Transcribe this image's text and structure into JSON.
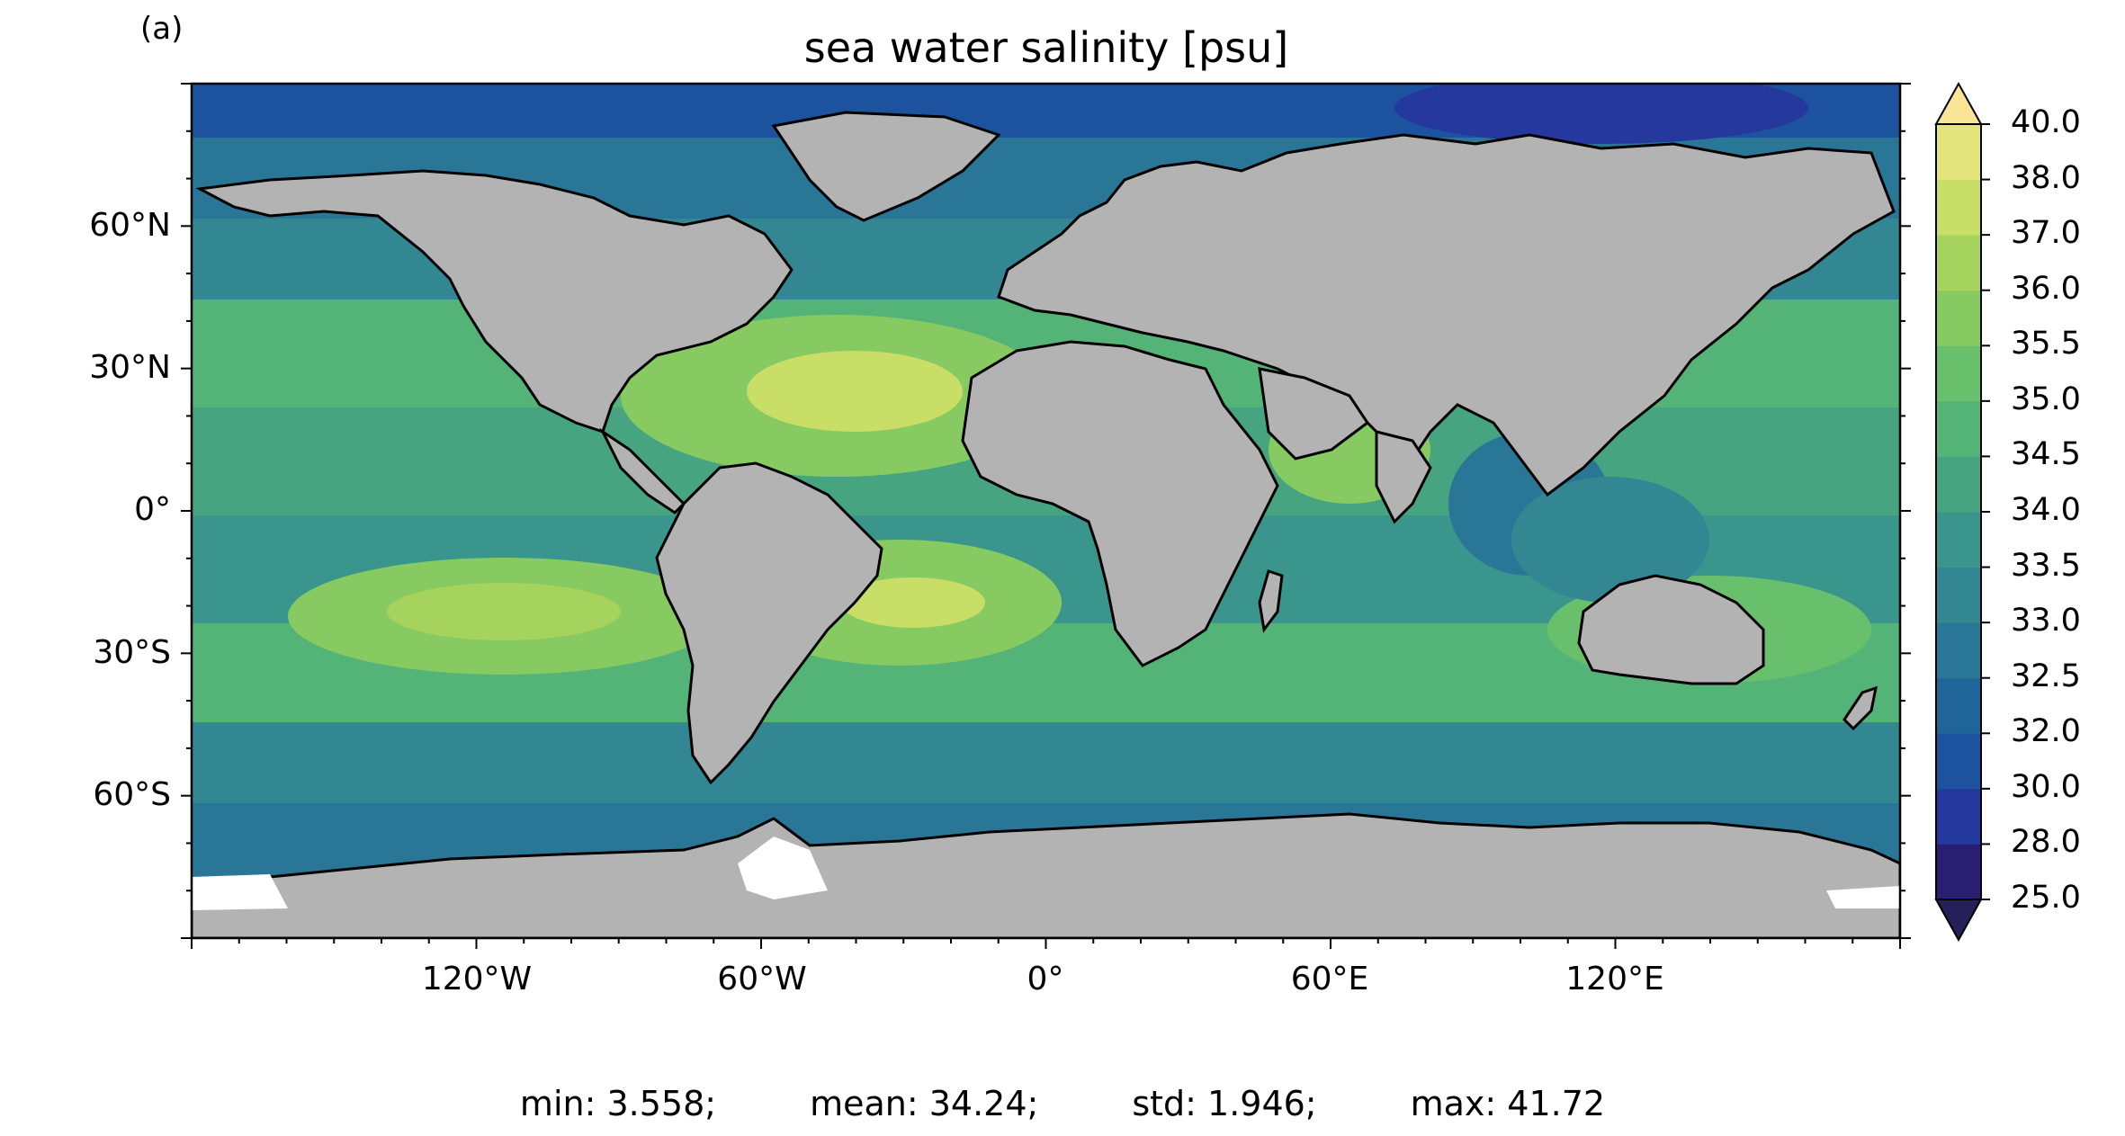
{
  "panel_label": "(a)",
  "title": "sea water salinity [psu]",
  "lat_ticks": [
    "60°N",
    "30°N",
    "0°",
    "30°S",
    "60°S"
  ],
  "lon_ticks": [
    "120°W",
    "60°W",
    "0°",
    "60°E",
    "120°E"
  ],
  "colorbar": {
    "levels": [
      "25.0",
      "28.0",
      "30.0",
      "32.0",
      "32.5",
      "33.0",
      "33.5",
      "34.0",
      "34.5",
      "35.0",
      "35.5",
      "36.0",
      "37.0",
      "38.0",
      "40.0"
    ],
    "colors": [
      "#2a1e72",
      "#25389e",
      "#1d539e",
      "#1f6599",
      "#2a7696",
      "#338793",
      "#3a968c",
      "#46a481",
      "#54b377",
      "#68c06c",
      "#86ca61",
      "#a5d35d",
      "#c9de66",
      "#e3e47b",
      "#f6e493"
    ],
    "under_color": "#25205a",
    "over_color": "#f9e595"
  },
  "stats": {
    "min": "min: 3.558;",
    "mean": "mean: 34.24;",
    "std": "std: 1.946;",
    "max": "max: 41.72"
  },
  "map_colors": {
    "land": "#b3b3b3",
    "ice": "#ffffff",
    "coast": "#000000"
  }
}
